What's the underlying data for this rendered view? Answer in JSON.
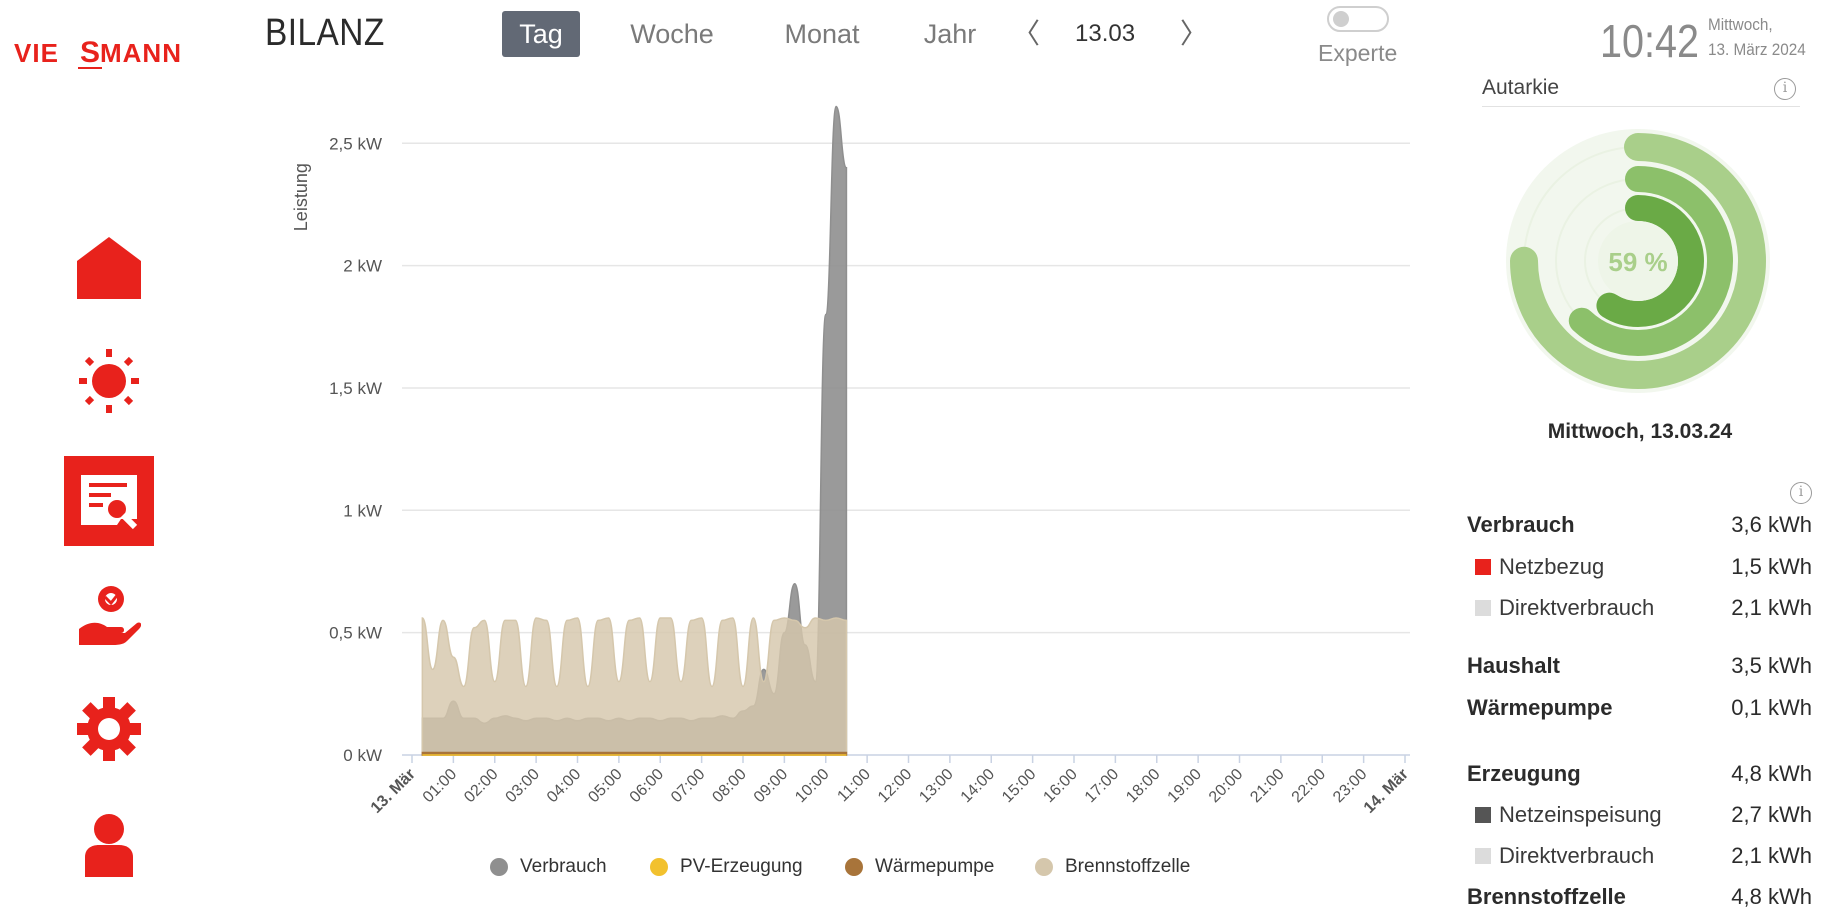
{
  "brand": {
    "logo_text": "VIESMANN",
    "color": "#e8221c"
  },
  "header": {
    "title": "BILANZ",
    "tabs": [
      {
        "label": "Tag",
        "active": true
      },
      {
        "label": "Woche",
        "active": false
      },
      {
        "label": "Monat",
        "active": false
      },
      {
        "label": "Jahr",
        "active": false
      }
    ],
    "prev_label": "〈",
    "next_label": "〉",
    "date": "13.03",
    "expert_toggle": {
      "label": "Experte",
      "on": false
    },
    "clock": {
      "time": "10:42",
      "weekday": "Mittwoch,",
      "date": "13. März 2024"
    }
  },
  "sidebar": {
    "items": [
      {
        "icon": "house-icon",
        "active": false
      },
      {
        "icon": "sun-icon",
        "active": false
      },
      {
        "icon": "report-search-icon",
        "active": true
      },
      {
        "icon": "hand-service-icon",
        "active": false
      },
      {
        "icon": "gear-icon",
        "active": false
      },
      {
        "icon": "user-icon",
        "active": false
      }
    ]
  },
  "chart_data": {
    "type": "area",
    "ylabel": "Leistung",
    "y_ticks": [
      "0 kW",
      "0,5 kW",
      "1 kW",
      "1,5 kW",
      "2 kW",
      "2,5 kW"
    ],
    "ylim": [
      0,
      2.5
    ],
    "x_ticks": [
      "13. Mär",
      "01:00",
      "02:00",
      "03:00",
      "04:00",
      "05:00",
      "06:00",
      "07:00",
      "08:00",
      "09:00",
      "10:00",
      "11:00",
      "12:00",
      "13:00",
      "14:00",
      "15:00",
      "16:00",
      "17:00",
      "18:00",
      "19:00",
      "20:00",
      "21:00",
      "22:00",
      "23:00",
      "14. Mär"
    ],
    "x_hours": [
      0.25,
      0.5,
      0.75,
      1.0,
      1.25,
      1.5,
      1.75,
      2.0,
      2.25,
      2.5,
      2.75,
      3.0,
      3.25,
      3.5,
      3.75,
      4.0,
      4.25,
      4.5,
      4.75,
      5.0,
      5.25,
      5.5,
      5.75,
      6.0,
      6.25,
      6.5,
      6.75,
      7.0,
      7.25,
      7.5,
      7.75,
      8.0,
      8.25,
      8.5,
      8.75,
      9.0,
      9.25,
      9.5,
      9.75,
      10.0,
      10.25,
      10.5
    ],
    "grid": true,
    "legend_position": "bottom",
    "series": [
      {
        "name": "Verbrauch",
        "color": "#8f8f8f",
        "values": [
          0.15,
          0.15,
          0.15,
          0.22,
          0.15,
          0.15,
          0.13,
          0.15,
          0.16,
          0.15,
          0.14,
          0.15,
          0.15,
          0.14,
          0.15,
          0.14,
          0.15,
          0.15,
          0.14,
          0.15,
          0.14,
          0.15,
          0.15,
          0.14,
          0.15,
          0.15,
          0.14,
          0.15,
          0.15,
          0.16,
          0.15,
          0.18,
          0.2,
          0.35,
          0.25,
          0.5,
          0.7,
          0.45,
          0.3,
          1.8,
          2.65,
          2.4
        ]
      },
      {
        "name": "PV-Erzeugung",
        "color": "#f2c12e",
        "values": [
          0,
          0,
          0,
          0,
          0,
          0,
          0,
          0,
          0,
          0,
          0,
          0,
          0,
          0,
          0,
          0,
          0,
          0,
          0,
          0,
          0,
          0,
          0,
          0,
          0,
          0,
          0,
          0,
          0,
          0,
          0,
          0,
          0,
          0,
          0,
          0,
          0,
          0,
          0,
          0,
          0,
          0
        ]
      },
      {
        "name": "Wärmepumpe",
        "color": "#a8743a",
        "values": [
          0.01,
          0.01,
          0.01,
          0.01,
          0.01,
          0.01,
          0.01,
          0.01,
          0.01,
          0.01,
          0.01,
          0.01,
          0.01,
          0.01,
          0.01,
          0.01,
          0.01,
          0.01,
          0.01,
          0.01,
          0.01,
          0.01,
          0.01,
          0.01,
          0.01,
          0.01,
          0.01,
          0.01,
          0.01,
          0.01,
          0.01,
          0.01,
          0.01,
          0.01,
          0.01,
          0.01,
          0.01,
          0.01,
          0.01,
          0.01,
          0.01,
          0.01
        ]
      },
      {
        "name": "Brennstoffzelle",
        "color": "#d5c7ac",
        "values": [
          0.56,
          0.35,
          0.55,
          0.4,
          0.28,
          0.52,
          0.55,
          0.3,
          0.55,
          0.55,
          0.28,
          0.56,
          0.55,
          0.28,
          0.55,
          0.56,
          0.28,
          0.55,
          0.56,
          0.3,
          0.55,
          0.56,
          0.3,
          0.56,
          0.56,
          0.3,
          0.55,
          0.56,
          0.28,
          0.55,
          0.56,
          0.28,
          0.56,
          0.3,
          0.55,
          0.56,
          0.55,
          0.52,
          0.56,
          0.55,
          0.56,
          0.55
        ]
      }
    ]
  },
  "autarkie": {
    "title": "Autarkie",
    "percent_text": "59 %",
    "percent": 59,
    "rings": [
      {
        "fraction": 0.75,
        "color": "#a9cf8a"
      },
      {
        "fraction": 0.62,
        "color": "#8cc06a"
      },
      {
        "fraction": 0.59,
        "color": "#6aaa46"
      }
    ],
    "caption": "Mittwoch, 13.03.24"
  },
  "stats": [
    {
      "label": "Verbrauch",
      "value": "3,6 kWh",
      "kind": "head"
    },
    {
      "label": "Netzbezug",
      "value": "1,5 kWh",
      "kind": "sub",
      "color": "#e8221c"
    },
    {
      "label": "Direktverbrauch",
      "value": "2,1 kWh",
      "kind": "sub",
      "color": "#dcdcdc"
    },
    {
      "label": "Haushalt",
      "value": "3,5 kWh",
      "kind": "head"
    },
    {
      "label": "Wärmepumpe",
      "value": "0,1 kWh",
      "kind": "head"
    },
    {
      "label": "Erzeugung",
      "value": "4,8 kWh",
      "kind": "head"
    },
    {
      "label": "Netzeinspeisung",
      "value": "2,7 kWh",
      "kind": "sub",
      "color": "#555555"
    },
    {
      "label": "Direktverbrauch",
      "value": "2,1 kWh",
      "kind": "sub",
      "color": "#dcdcdc"
    },
    {
      "label": "Brennstoffzelle",
      "value": "4,8 kWh",
      "kind": "head"
    }
  ]
}
